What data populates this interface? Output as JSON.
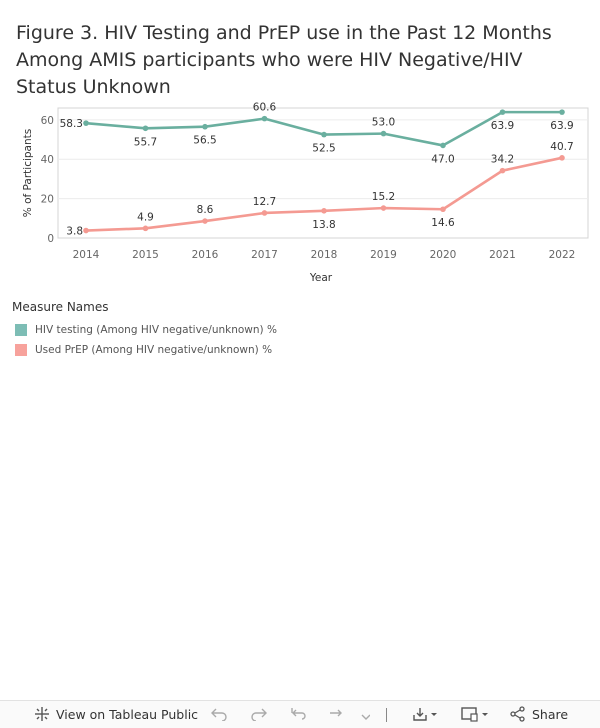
{
  "title": "Figure 3. HIV Testing and PrEP use in the Past 12 Months Among AMIS participants who were HIV Negative/HIV Status Unknown",
  "legend": {
    "title": "Measure Names",
    "items": [
      {
        "label": "HIV testing (Among HIV negative/unknown) %",
        "color": "#7dbdb5"
      },
      {
        "label": "Used PrEP (Among HIV negative/unknown) %",
        "color": "#f7a29c"
      }
    ]
  },
  "toolbar": {
    "view_label": "View on Tableau Public",
    "share_label": "Share"
  },
  "chart_data": {
    "type": "line",
    "title": "Figure 3. HIV Testing and PrEP use in the Past 12 Months Among AMIS participants who were HIV Negative/HIV Status Unknown",
    "xlabel": "Year",
    "ylabel": "% of Participants",
    "ylim": [
      0,
      66
    ],
    "yticks": [
      "0",
      "20",
      "40",
      "60"
    ],
    "categories": [
      "2014",
      "2015",
      "2016",
      "2017",
      "2018",
      "2019",
      "2020",
      "2021",
      "2022"
    ],
    "series": [
      {
        "name": "HIV testing (Among HIV negative/unknown) %",
        "color": "#6aaf9f",
        "values": [
          58.3,
          55.7,
          56.5,
          60.6,
          52.5,
          53.0,
          47.0,
          63.9,
          63.9
        ],
        "labels": [
          "58.3",
          "55.7",
          "56.5",
          "60.6",
          "52.5",
          "53.0",
          "47.0",
          "63.9",
          "63.9"
        ],
        "label_pos": [
          "left",
          "below",
          "below",
          "above",
          "below",
          "above",
          "below",
          "below",
          "below"
        ]
      },
      {
        "name": "Used PrEP (Among HIV negative/unknown) %",
        "color": "#f49a92",
        "values": [
          3.8,
          4.9,
          8.6,
          12.7,
          13.8,
          15.2,
          14.6,
          34.2,
          40.7
        ],
        "labels": [
          "3.8",
          "4.9",
          "8.6",
          "12.7",
          "13.8",
          "15.2",
          "14.6",
          "34.2",
          "40.7"
        ],
        "label_pos": [
          "left",
          "above",
          "above",
          "above",
          "below",
          "above",
          "below",
          "above",
          "above"
        ]
      }
    ]
  }
}
